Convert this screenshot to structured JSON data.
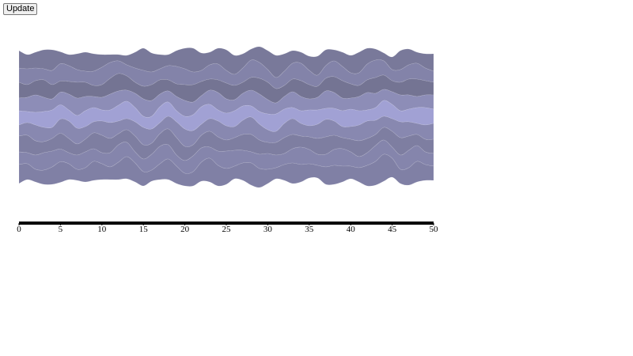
{
  "controls": {
    "update_label": "Update"
  },
  "chart_data": {
    "type": "area",
    "subtype": "streamgraph",
    "title": "",
    "xlabel": "",
    "ylabel": "",
    "xlim": [
      0,
      50
    ],
    "x_ticks": [
      "0",
      "5",
      "10",
      "15",
      "20",
      "25",
      "30",
      "35",
      "40",
      "45",
      "50"
    ],
    "grid": false,
    "legend": "none",
    "colors": {
      "dark": "#71718f",
      "light": "#a4a4d8",
      "axis": "#000000"
    },
    "x": [
      0,
      1,
      2,
      3,
      4,
      5,
      6,
      7,
      8,
      9,
      10,
      11,
      12,
      13,
      14,
      15,
      16,
      17,
      18,
      19,
      20,
      21,
      22,
      23,
      24,
      25,
      26,
      27,
      28,
      29,
      30,
      31,
      32,
      33,
      34,
      35,
      36,
      37,
      38,
      39,
      40,
      41,
      42,
      43,
      44,
      45,
      46,
      47,
      48,
      49,
      50
    ],
    "series": [
      {
        "values": [
          22,
          18,
          20,
          24,
          26,
          15,
          14,
          20,
          24,
          22,
          16,
          10,
          8,
          12,
          20,
          28,
          24,
          18,
          14,
          20,
          26,
          30,
          22,
          16,
          20,
          26,
          24,
          18,
          14,
          20,
          24,
          28,
          22,
          16,
          14,
          18,
          24,
          20,
          14,
          18,
          22,
          26,
          20,
          14,
          10,
          16,
          24,
          20,
          14,
          18,
          22
        ]
      },
      {
        "values": [
          18,
          20,
          16,
          14,
          18,
          22,
          20,
          16,
          14,
          18,
          22,
          20,
          16,
          14,
          18,
          20,
          16,
          14,
          18,
          22,
          20,
          16,
          14,
          18,
          20,
          16,
          14,
          18,
          22,
          20,
          16,
          14,
          18,
          20,
          22,
          18,
          14,
          16,
          20,
          18,
          14,
          16,
          20,
          22,
          18,
          14,
          16,
          18,
          20,
          16,
          14
        ]
      },
      {
        "values": [
          20,
          16,
          18,
          22,
          18,
          14,
          16,
          20,
          18,
          14,
          16,
          20,
          22,
          18,
          14,
          16,
          20,
          18,
          14,
          16,
          20,
          22,
          18,
          14,
          16,
          20,
          18,
          14,
          16,
          20,
          22,
          18,
          14,
          16,
          20,
          18,
          14,
          16,
          20,
          22,
          18,
          14,
          16,
          20,
          18,
          14,
          16,
          20,
          22,
          18,
          16
        ]
      },
      {
        "values": [
          16,
          18,
          22,
          18,
          14,
          16,
          20,
          22,
          18,
          14,
          16,
          20,
          18,
          14,
          18,
          22,
          20,
          16,
          14,
          18,
          20,
          16,
          14,
          18,
          22,
          18,
          14,
          16,
          20,
          22,
          18,
          14,
          16,
          20,
          18,
          14,
          16,
          22,
          20,
          16,
          14,
          18,
          22,
          18,
          14,
          16,
          20,
          18,
          14,
          16,
          18
        ]
      },
      {
        "values": [
          18,
          14,
          16,
          20,
          22,
          18,
          14,
          16,
          20,
          18,
          14,
          16,
          20,
          22,
          18,
          14,
          16,
          20,
          18,
          14,
          16,
          20,
          22,
          18,
          14,
          16,
          20,
          18,
          14,
          16,
          20,
          22,
          18,
          14,
          16,
          20,
          18,
          14,
          16,
          20,
          22,
          18,
          14,
          16,
          20,
          18,
          14,
          16,
          20,
          22,
          18
        ]
      },
      {
        "values": [
          14,
          16,
          20,
          18,
          14,
          18,
          22,
          20,
          16,
          14,
          18,
          20,
          16,
          14,
          18,
          22,
          18,
          14,
          16,
          20,
          22,
          18,
          14,
          16,
          20,
          18,
          14,
          18,
          22,
          20,
          16,
          14,
          18,
          20,
          16,
          14,
          18,
          22,
          18,
          14,
          16,
          20,
          22,
          18,
          14,
          16,
          20,
          18,
          14,
          18,
          20
        ]
      },
      {
        "values": [
          20,
          22,
          18,
          14,
          16,
          20,
          18,
          14,
          16,
          20,
          22,
          18,
          14,
          16,
          20,
          18,
          14,
          16,
          20,
          22,
          18,
          14,
          16,
          20,
          18,
          14,
          16,
          20,
          22,
          18,
          14,
          16,
          20,
          18,
          14,
          16,
          20,
          22,
          18,
          14,
          16,
          20,
          18,
          14,
          16,
          20,
          22,
          18,
          14,
          16,
          18
        ]
      },
      {
        "values": [
          16,
          14,
          18,
          22,
          20,
          16,
          14,
          18,
          20,
          16,
          14,
          18,
          22,
          18,
          14,
          16,
          20,
          22,
          18,
          14,
          16,
          20,
          18,
          14,
          18,
          22,
          20,
          16,
          14,
          18,
          20,
          16,
          14,
          18,
          22,
          18,
          14,
          16,
          20,
          22,
          18,
          14,
          16,
          20,
          18,
          14,
          18,
          22,
          20,
          16,
          16
        ]
      },
      {
        "values": [
          24,
          20,
          16,
          18,
          22,
          26,
          20,
          14,
          18,
          24,
          20,
          16,
          22,
          28,
          24,
          18,
          14,
          20,
          26,
          22,
          16,
          18,
          24,
          30,
          26,
          20,
          16,
          22,
          28,
          24,
          18,
          14,
          20,
          26,
          22,
          18,
          16,
          22,
          24,
          20,
          16,
          18,
          26,
          30,
          34,
          24,
          18,
          22,
          26,
          20,
          18
        ]
      }
    ]
  }
}
